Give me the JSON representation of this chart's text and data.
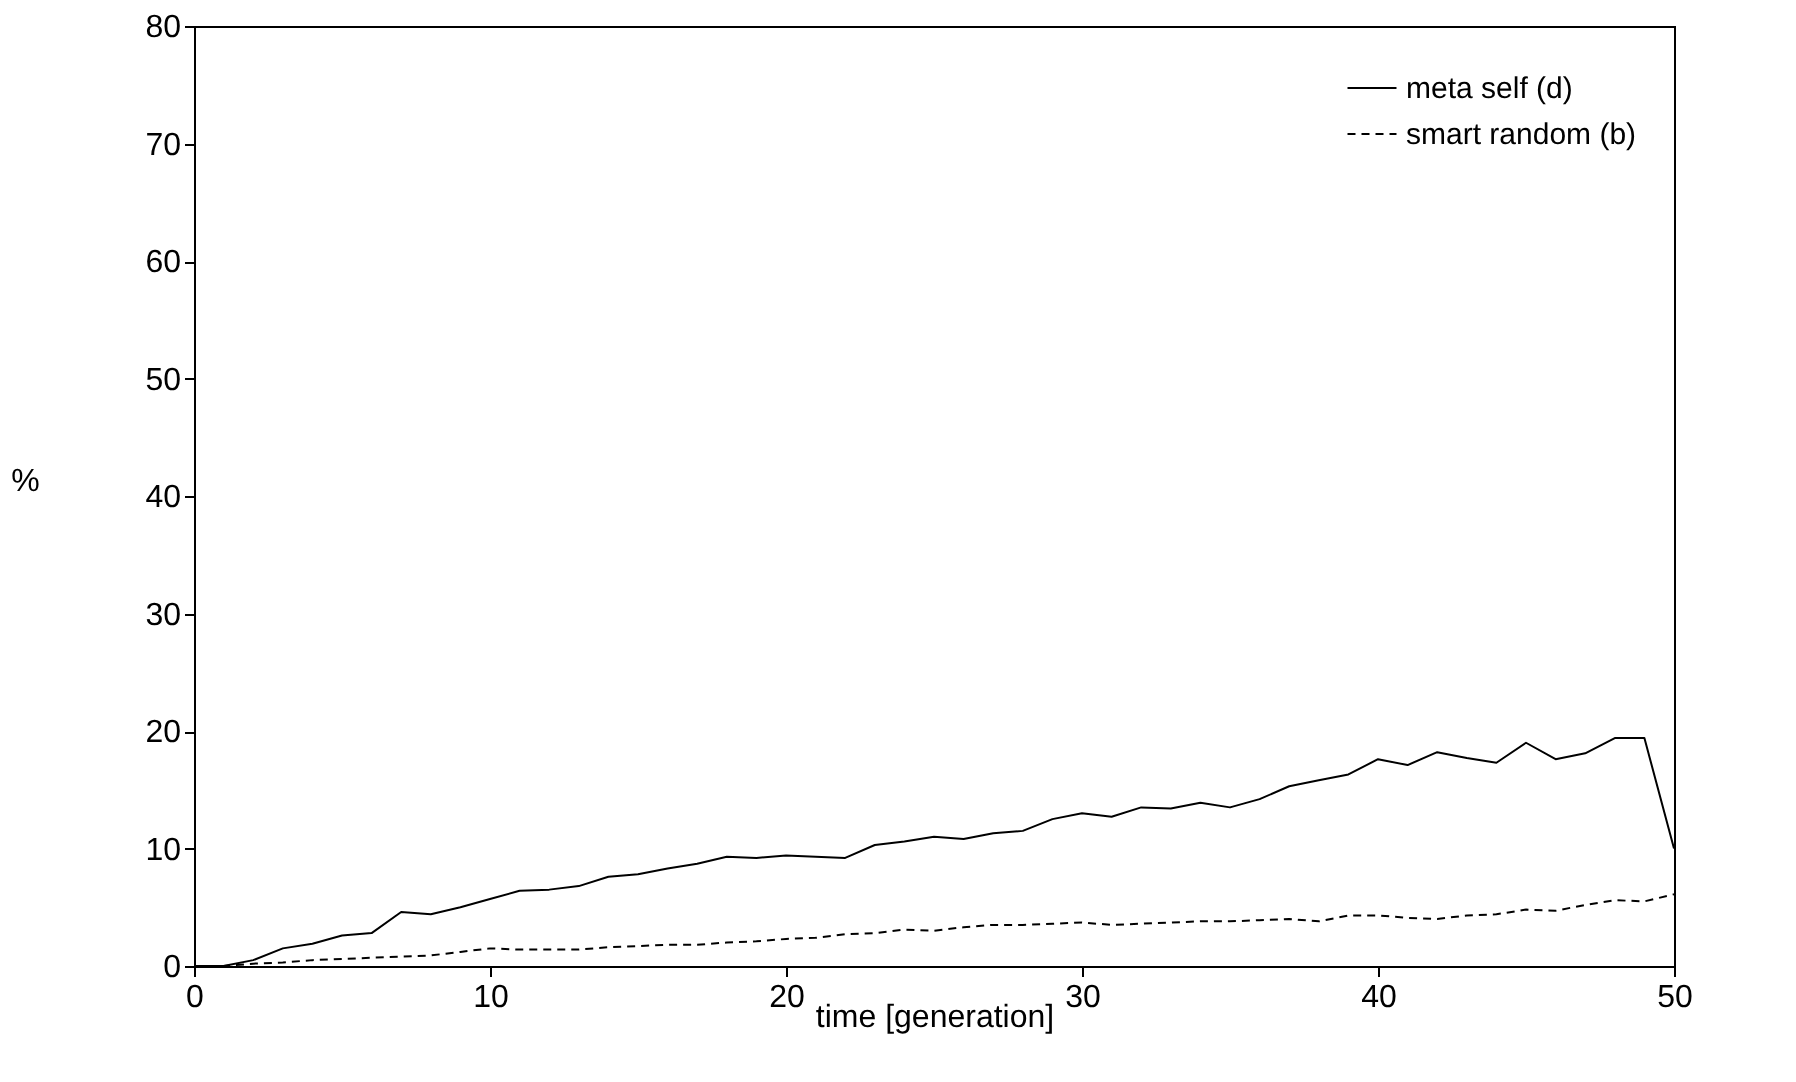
{
  "chart_data": {
    "type": "line",
    "xlabel": "time [generation]",
    "ylabel": "%",
    "x": [
      0,
      1,
      2,
      3,
      4,
      5,
      6,
      7,
      8,
      9,
      10,
      11,
      12,
      13,
      14,
      15,
      16,
      17,
      18,
      19,
      20,
      21,
      22,
      23,
      24,
      25,
      26,
      27,
      28,
      29,
      30,
      31,
      32,
      33,
      34,
      35,
      36,
      37,
      38,
      39,
      40,
      41,
      42,
      43,
      44,
      45,
      46,
      47,
      48,
      49,
      50
    ],
    "series": [
      {
        "name": "meta self (d)",
        "color": "#000000",
        "line_style": "solid",
        "values": [
          0,
          0,
          0.5,
          1.5,
          1.9,
          2.6,
          2.8,
          4.6,
          4.4,
          5,
          5.7,
          6.4,
          6.5,
          6.8,
          7.6,
          7.8,
          8.3,
          8.7,
          9.3,
          9.2,
          9.4,
          9.3,
          9.2,
          10.3,
          10.6,
          11,
          10.8,
          11.3,
          11.5,
          12.5,
          13,
          12.7,
          13.5,
          13.4,
          13.9,
          13.5,
          14.2,
          15.3,
          15.8,
          16.3,
          17.6,
          17.1,
          18.2,
          17.7,
          17.3,
          19,
          17.6,
          18.1,
          19.4,
          19.4,
          10
        ]
      },
      {
        "name": "smart random (b)",
        "color": "#000000",
        "line_style": "dashed",
        "values": [
          0,
          0,
          0.2,
          0.3,
          0.5,
          0.6,
          0.7,
          0.8,
          0.9,
          1.2,
          1.5,
          1.4,
          1.4,
          1.4,
          1.6,
          1.7,
          1.8,
          1.8,
          2,
          2.1,
          2.3,
          2.4,
          2.7,
          2.8,
          3.1,
          3,
          3.3,
          3.5,
          3.5,
          3.6,
          3.7,
          3.5,
          3.6,
          3.7,
          3.8,
          3.8,
          3.9,
          4,
          3.8,
          4.3,
          4.3,
          4.1,
          4,
          4.3,
          4.4,
          4.8,
          4.7,
          5.2,
          5.6,
          5.5,
          6.1
        ]
      }
    ],
    "xlim": [
      0,
      50
    ],
    "xticks": [
      0,
      10,
      20,
      30,
      40,
      50
    ],
    "ylim": [
      0,
      80
    ],
    "yticks": [
      0,
      10,
      20,
      30,
      40,
      50,
      60,
      70,
      80
    ],
    "grid": false,
    "legend": "top right",
    "marker": "none"
  }
}
